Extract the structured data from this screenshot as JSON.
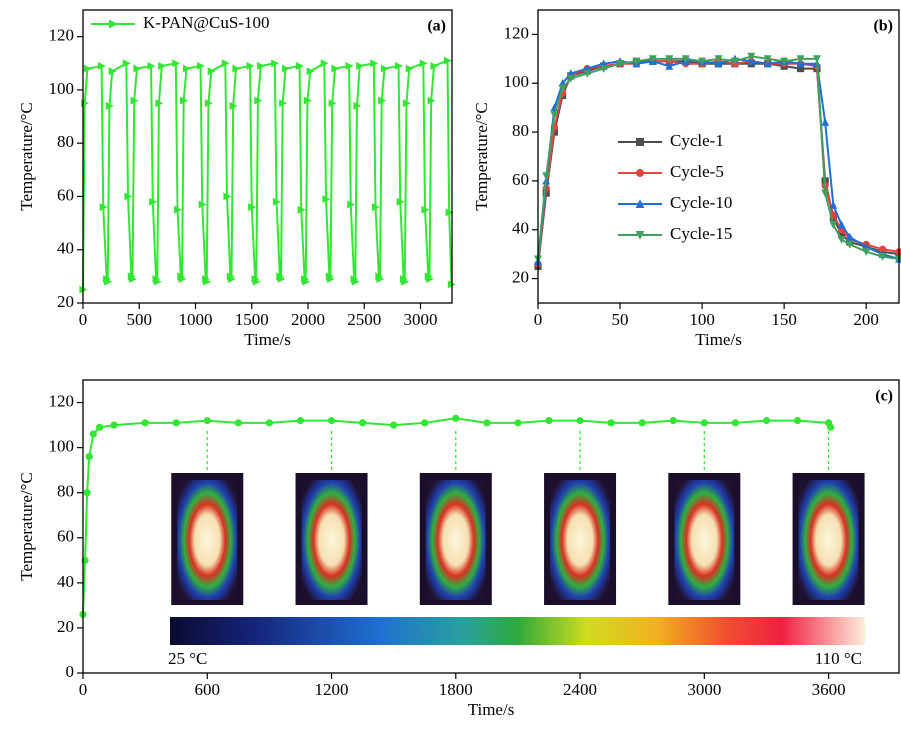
{
  "chart_data": [
    {
      "type": "line",
      "annotation": "(a)",
      "x_label": "Time/s",
      "y_label": "Temperature/°C",
      "xlim": [
        0,
        3280
      ],
      "ylim": [
        20,
        130
      ],
      "xticks": [
        0,
        500,
        1000,
        1500,
        2000,
        2500,
        3000
      ],
      "yticks": [
        20,
        40,
        60,
        80,
        100,
        120
      ],
      "legend": "upper left",
      "x": [
        0,
        15,
        40,
        165,
        180,
        210,
        220,
        235,
        260,
        385,
        400,
        430,
        440,
        455,
        480,
        605,
        620,
        650,
        660,
        675,
        700,
        825,
        840,
        870,
        880,
        895,
        920,
        1045,
        1060,
        1090,
        1100,
        1115,
        1140,
        1265,
        1280,
        1310,
        1320,
        1335,
        1360,
        1485,
        1500,
        1530,
        1540,
        1555,
        1580,
        1705,
        1720,
        1750,
        1760,
        1775,
        1800,
        1925,
        1940,
        1970,
        1980,
        1995,
        2020,
        2145,
        2160,
        2190,
        2200,
        2215,
        2240,
        2365,
        2380,
        2410,
        2420,
        2435,
        2460,
        2585,
        2600,
        2630,
        2640,
        2655,
        2680,
        2805,
        2820,
        2850,
        2860,
        2875,
        2900,
        3025,
        3040,
        3070,
        3080,
        3095,
        3120,
        3240,
        3255,
        3275
      ],
      "series": [
        {
          "name": "K-PAN@CuS-100",
          "color": "#33e633",
          "marker": "triangle-right",
          "values": [
            25,
            95,
            108,
            109,
            56,
            29,
            28,
            94,
            107,
            110,
            60,
            30,
            29,
            96,
            108,
            109,
            58,
            29,
            28,
            95,
            109,
            110,
            55,
            30,
            29,
            96,
            108,
            109,
            57,
            29,
            28,
            95,
            107,
            110,
            60,
            30,
            29,
            94,
            108,
            109,
            56,
            29,
            28,
            96,
            109,
            110,
            58,
            30,
            29,
            95,
            108,
            109,
            55,
            29,
            28,
            96,
            107,
            110,
            59,
            30,
            29,
            95,
            108,
            109,
            57,
            29,
            28,
            94,
            109,
            110,
            56,
            30,
            29,
            96,
            108,
            109,
            58,
            29,
            28,
            95,
            108,
            110,
            55,
            30,
            29,
            96,
            109,
            111,
            54,
            27
          ]
        }
      ]
    },
    {
      "type": "line",
      "annotation": "(b)",
      "x_label": "Time/s",
      "y_label": "Temperature/°C",
      "xlim": [
        0,
        220
      ],
      "ylim": [
        10,
        130
      ],
      "xticks": [
        0,
        50,
        100,
        150,
        200
      ],
      "yticks": [
        20,
        40,
        60,
        80,
        100,
        120
      ],
      "legend": "center left",
      "x": [
        0,
        5,
        10,
        15,
        20,
        30,
        40,
        50,
        60,
        70,
        80,
        90,
        100,
        110,
        120,
        130,
        140,
        150,
        160,
        170,
        175,
        180,
        185,
        190,
        200,
        210,
        220
      ],
      "series": [
        {
          "name": "Cycle-1",
          "color": "#4d4d4d",
          "marker": "square",
          "values": [
            25,
            55,
            80,
            95,
            103,
            105,
            107,
            108,
            109,
            109,
            109,
            109,
            108,
            108,
            108,
            108,
            108,
            107,
            106,
            106,
            60,
            45,
            38,
            35,
            33,
            31,
            30
          ]
        },
        {
          "name": "Cycle-5",
          "color": "#e8413e",
          "marker": "circle",
          "values": [
            26,
            57,
            82,
            96,
            103,
            106,
            107,
            108,
            108,
            109,
            109,
            108,
            108,
            109,
            108,
            109,
            108,
            108,
            108,
            107,
            58,
            46,
            40,
            36,
            34,
            32,
            31
          ]
        },
        {
          "name": "Cycle-10",
          "color": "#1f6fd6",
          "marker": "triangle-up",
          "values": [
            27,
            60,
            90,
            100,
            104,
            106,
            108,
            109,
            108,
            109,
            107,
            109,
            109,
            108,
            110,
            109,
            108,
            109,
            108,
            108,
            84,
            50,
            42,
            37,
            33,
            30,
            28
          ]
        },
        {
          "name": "Cycle-15",
          "color": "#3fa060",
          "marker": "triangle-down",
          "values": [
            28,
            62,
            87,
            98,
            102,
            104,
            106,
            108,
            109,
            110,
            110,
            110,
            109,
            110,
            109,
            111,
            110,
            109,
            110,
            110,
            55,
            42,
            36,
            34,
            31,
            29,
            28
          ]
        }
      ]
    },
    {
      "type": "line",
      "annotation": "(c)",
      "x_label": "Time/s",
      "y_label": "Temperature/°C",
      "xlim": [
        0,
        3940
      ],
      "ylim": [
        0,
        130
      ],
      "xticks": [
        0,
        600,
        1200,
        1800,
        2400,
        3000,
        3600
      ],
      "yticks": [
        0,
        20,
        40,
        60,
        80,
        100,
        120
      ],
      "x": [
        0,
        10,
        20,
        30,
        50,
        80,
        150,
        300,
        450,
        600,
        750,
        900,
        1050,
        1200,
        1350,
        1500,
        1650,
        1800,
        1950,
        2100,
        2250,
        2400,
        2550,
        2700,
        2850,
        3000,
        3150,
        3300,
        3450,
        3600,
        3610
      ],
      "color": "#33e633",
      "marker": "circle",
      "values": [
        26,
        50,
        80,
        96,
        106,
        109,
        110,
        111,
        111,
        112,
        111,
        111,
        112,
        112,
        111,
        110,
        111,
        113,
        111,
        111,
        112,
        112,
        111,
        111,
        112,
        111,
        111,
        112,
        112,
        111,
        109
      ],
      "snapshot_x": [
        600,
        1200,
        1800,
        2400,
        3000,
        3600
      ],
      "colorbar_labels": [
        "25 °C",
        "110 °C"
      ]
    }
  ]
}
